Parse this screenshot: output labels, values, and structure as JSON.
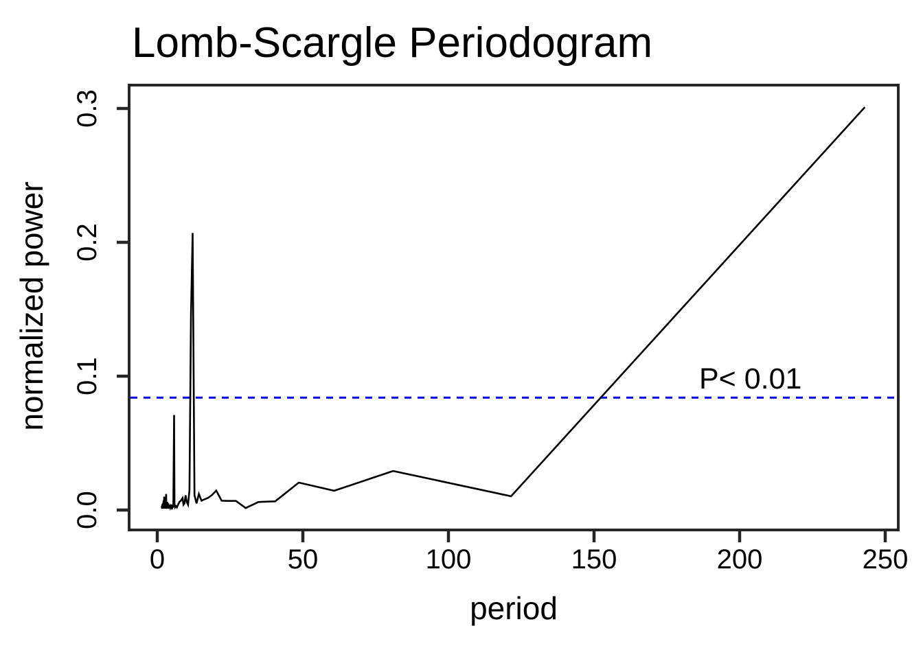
{
  "chart_data": {
    "type": "line",
    "title": "Lomb-Scargle Periodogram",
    "xlabel": "period",
    "ylabel": "normalized power",
    "xlim": [
      0,
      250
    ],
    "ylim": [
      0,
      0.3
    ],
    "grid": false,
    "legend_position": "none",
    "background_color": "#FFFFFF",
    "line_color": "#000000",
    "axis_color": "#262626",
    "xticks": {
      "values": [
        0,
        50,
        100,
        150,
        200,
        250
      ],
      "labels": [
        "0",
        "50",
        "100",
        "150",
        "200",
        "250"
      ]
    },
    "yticks": {
      "values": [
        0,
        0.1,
        0.2,
        0.3
      ],
      "labels": [
        "0.0",
        "0.1",
        "0.2",
        "0.3"
      ]
    },
    "significance": {
      "value": 0.084,
      "label": "P< 0.01",
      "color": "#0000EE",
      "style": "dashed"
    },
    "main_peak": {
      "period": 12.15,
      "power": 0.207
    },
    "points": [
      [
        1.55,
        0.003
      ],
      [
        1.62,
        0.001
      ],
      [
        1.7,
        0.004
      ],
      [
        1.78,
        0.002
      ],
      [
        1.86,
        0.005
      ],
      [
        1.94,
        0.002
      ],
      [
        2.01,
        0.004
      ],
      [
        2.05,
        0.001
      ],
      [
        2.09,
        0.006
      ],
      [
        2.13,
        0.002
      ],
      [
        2.17,
        0.007
      ],
      [
        2.21,
        0.003
      ],
      [
        2.25,
        0.001
      ],
      [
        2.3,
        0.008
      ],
      [
        2.34,
        0.002
      ],
      [
        2.39,
        0.01
      ],
      [
        2.43,
        0.004
      ],
      [
        2.48,
        0.002
      ],
      [
        2.53,
        0.001
      ],
      [
        2.59,
        0.006
      ],
      [
        2.64,
        0.002
      ],
      [
        2.7,
        0.004
      ],
      [
        2.76,
        0.001
      ],
      [
        2.82,
        0.007
      ],
      [
        2.89,
        0.003
      ],
      [
        2.96,
        0.002
      ],
      [
        3.04,
        0.012
      ],
      [
        3.11,
        0.004
      ],
      [
        3.2,
        0.001
      ],
      [
        3.28,
        0.005
      ],
      [
        3.38,
        0.002
      ],
      [
        3.47,
        0.006
      ],
      [
        3.57,
        0.003
      ],
      [
        3.68,
        0.001
      ],
      [
        3.8,
        0.005
      ],
      [
        3.92,
        0.002
      ],
      [
        4.05,
        0.003
      ],
      [
        4.19,
        0.001
      ],
      [
        4.34,
        0.004
      ],
      [
        4.5,
        0.002
      ],
      [
        4.68,
        0.003
      ],
      [
        4.86,
        0.002
      ],
      [
        5.06,
        0.004
      ],
      [
        5.28,
        0.002
      ],
      [
        5.52,
        0.003
      ],
      [
        5.79,
        0.071
      ],
      [
        5.93,
        0.004
      ],
      [
        6.08,
        0.002
      ],
      [
        6.39,
        0.003
      ],
      [
        6.75,
        0.002
      ],
      [
        7.15,
        0.004
      ],
      [
        7.59,
        0.006
      ],
      [
        8.1,
        0.007
      ],
      [
        8.68,
        0.009
      ],
      [
        9.0,
        0.004
      ],
      [
        9.35,
        0.005
      ],
      [
        9.72,
        0.011
      ],
      [
        10.13,
        0.006
      ],
      [
        10.57,
        0.004
      ],
      [
        11.05,
        0.015
      ],
      [
        11.57,
        0.146
      ],
      [
        12.15,
        0.207
      ],
      [
        12.79,
        0.011
      ],
      [
        13.5,
        0.005
      ],
      [
        14.29,
        0.012
      ],
      [
        15.19,
        0.007
      ],
      [
        16.2,
        0.008
      ],
      [
        17.36,
        0.009
      ],
      [
        18.69,
        0.011
      ],
      [
        20.25,
        0.0145
      ],
      [
        22.09,
        0.007
      ],
      [
        24.3,
        0.0068
      ],
      [
        27.0,
        0.0068
      ],
      [
        30.38,
        0.0015
      ],
      [
        34.71,
        0.006
      ],
      [
        40.5,
        0.0065
      ],
      [
        48.6,
        0.0205
      ],
      [
        60.75,
        0.0144
      ],
      [
        81.0,
        0.0292
      ],
      [
        121.5,
        0.0103
      ],
      [
        243.0,
        0.301
      ]
    ]
  }
}
